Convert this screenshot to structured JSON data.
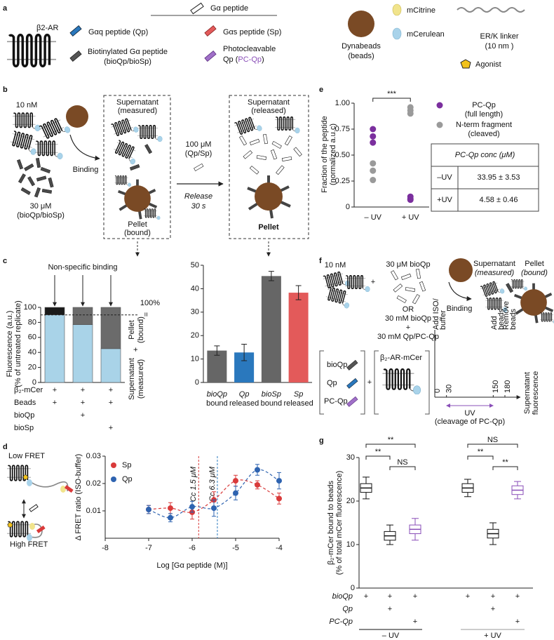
{
  "panel_labels": [
    "a",
    "b",
    "c",
    "d",
    "e",
    "f",
    "g"
  ],
  "legend_a": {
    "receptor": "β2-AR",
    "peptide_header": "Gα peptide",
    "qp": "Gαq peptide (Qp)",
    "sp": "Gαs peptide (Sp)",
    "bio": [
      "Biotinylated Gα peptide",
      "(bioQp/bioSp)"
    ],
    "pc": [
      "Photocleavable",
      "Qp (",
      "PC-Qp",
      ")"
    ],
    "beads": [
      "Dynabeads",
      "(beads)"
    ],
    "citrine": "mCitrine",
    "cerulean": "mCerulean",
    "linker": [
      "ER/K linker",
      "(10 nm )"
    ],
    "agonist": "Agonist"
  },
  "workflow_b": {
    "receptor_conc": "10 nM",
    "peptide_conc": [
      "30 μM",
      "(bioQp/bioSp)"
    ],
    "binding": "Binding",
    "supernatant": [
      "Supernatant",
      "(measured)"
    ],
    "pellet": [
      "Pellet",
      "(bound)"
    ],
    "release_conc": [
      "100 μM",
      "(Qp/Sp)"
    ],
    "release": [
      "Release",
      "30 s"
    ],
    "released": [
      "Supernatant",
      "(released)"
    ],
    "final_pellet": "Pellet"
  },
  "fret_d": {
    "low": "Low FRET",
    "high": "High FRET"
  },
  "table_e": {
    "header": "PC-Qp conc (μM)",
    "rows": [
      [
        "–UV",
        "33.95 ± 3.53"
      ],
      [
        "+UV",
        "4.58 ± 0.46"
      ]
    ]
  },
  "workflow_f": {
    "receptor_conc": "10 nM",
    "plus": "+",
    "peptide_conc": "30 μM bioQp",
    "or": "OR",
    "alt": [
      "30 mM bioQp",
      "+",
      "30 mM Qp/PC-Qp"
    ],
    "binding": "Binding",
    "supernatant": [
      "Supernatant",
      "(measured)"
    ],
    "pellet": [
      "Pellet",
      "(bound)"
    ],
    "mix": [
      "bioQp",
      "Qp",
      "PC-Qp"
    ],
    "mix_plus": "+",
    "receptor": "β₂-AR-mCer",
    "timeline": {
      "ticks": [
        0,
        30,
        150,
        180
      ],
      "events": [
        [
          "Add ISO/",
          "buffer"
        ],
        [
          "Add",
          "beads"
        ],
        [
          "Remove",
          "beads"
        ]
      ],
      "uv": "UV",
      "uv_note": "(cleavage of PC-Qp)",
      "readout": [
        "Supernatant",
        "fluorescence"
      ]
    }
  },
  "chart_data": [
    {
      "type": "stacked_bar",
      "title": "Non-specific binding",
      "ylabel": [
        "Fluorescence (a.u.)",
        "(% of untreated replicate)"
      ],
      "series": [
        {
          "name": [
            "Supernatant",
            "(measured)"
          ],
          "color": "#a9d3e8",
          "values": [
            90,
            77,
            45
          ]
        },
        {
          "name": [
            "Pellet",
            "(bound)"
          ],
          "color": "#6b6b6b",
          "colors": [
            "#1a1a1a",
            "#6b6b6b",
            "#6b6b6b"
          ],
          "values": [
            10,
            23,
            55
          ]
        }
      ],
      "side_labels": {
        "total": "100%",
        "equals": "=",
        "plus": "+"
      },
      "reference_line": 90,
      "ylim": [
        0,
        100
      ],
      "yticks": [
        0,
        20,
        40,
        60,
        80,
        100
      ],
      "conditions": {
        "rows": [
          "β₂-mCer",
          "Beads",
          "bioQp",
          "bioSp"
        ],
        "marks": [
          [
            "+",
            "+",
            "+"
          ],
          [
            "+",
            "+",
            "+"
          ],
          [
            null,
            "+",
            null
          ],
          [
            null,
            null,
            "+"
          ]
        ]
      }
    },
    {
      "type": "bar",
      "categories": [
        [
          "bioQp",
          "bound"
        ],
        [
          "Qp",
          "released"
        ],
        [
          "bioSp",
          "bound"
        ],
        [
          "Sp",
          "released"
        ]
      ],
      "category_colors": [
        "#111111",
        "#2a78bd",
        "#111111",
        "#e35a5a"
      ],
      "colors": [
        "#666666",
        "#2a78bd",
        "#666666",
        "#e35a5a"
      ],
      "values": [
        13.6,
        12.8,
        45.4,
        38.3
      ],
      "errors": [
        2,
        3.5,
        2,
        3
      ],
      "ylim": [
        0,
        50
      ],
      "yticks": [
        0,
        10,
        20,
        30,
        40,
        50
      ]
    },
    {
      "type": "line",
      "ylabel": "Δ FRET ratio (ISO-buffer)",
      "xlabel": "Log [Gα peptide (M)]",
      "x": [
        -7,
        -6.5,
        -6,
        -5.5,
        -5,
        -4.5,
        -4
      ],
      "series": [
        {
          "name": "Sp",
          "color": "#d93a3a",
          "values": [
            0.0105,
            0.011,
            0.0095,
            0.014,
            0.021,
            0.0195,
            0.0145
          ],
          "errors": [
            0.0015,
            0.002,
            0.0025,
            0.003,
            0.002,
            0.0015,
            0.002
          ]
        },
        {
          "name": "Qp",
          "color": "#2e63b0",
          "values": [
            0.0105,
            0.0075,
            0.0115,
            0.011,
            0.0165,
            0.025,
            0.021
          ],
          "errors": [
            0.0015,
            0.0015,
            0.002,
            0.003,
            0.0025,
            0.002,
            0.003
          ]
        }
      ],
      "annotations": [
        {
          "text": "Cc 1.5 μM",
          "x": -5.85,
          "color": "#d93a3a"
        },
        {
          "text": "Cc 6.3 μM",
          "x": -5.42,
          "color": "#2e7bbf"
        }
      ],
      "xlim": [
        -8,
        -4
      ],
      "xticks": [
        -8,
        -7,
        -6,
        -5,
        -4
      ],
      "ylim": [
        0,
        0.03
      ],
      "yticks": [
        0.01,
        0.02,
        0.03
      ]
    },
    {
      "type": "strip",
      "ylabel": [
        "Fraction of the peptide",
        "(normalized a.u.c)"
      ],
      "categories": [
        "– UV",
        "+ UV"
      ],
      "category_colors": [
        "#111111",
        "#999999"
      ],
      "series": [
        {
          "name": [
            "PC-Qp",
            "(full length)"
          ],
          "color": "#7b2f9e",
          "values": [
            [
              0.75,
              0.68,
              0.62
            ],
            [
              0.1,
              0.08,
              0.07
            ]
          ]
        },
        {
          "name": [
            "N-term fragment",
            "(cleaved)"
          ],
          "color": "#9a9a9a",
          "values": [
            [
              0.42,
              0.35,
              0.26
            ],
            [
              0.96,
              0.93,
              0.9
            ]
          ]
        }
      ],
      "significance": "***",
      "ylim": [
        0,
        1
      ],
      "yticks": [
        0,
        0.25,
        {
          "value": 0.5,
          "label": "0.50"
        },
        0.75,
        {
          "value": 1,
          "label": "1.00"
        }
      ]
    },
    {
      "type": "box",
      "ylabel": [
        "β₂-mCer bound to beads",
        "(% of total mCer fluorescence)"
      ],
      "colors": [
        "#111111",
        "#111111",
        "#8a4fb8",
        "#111111",
        "#111111",
        "#8a4fb8"
      ],
      "boxes": [
        {
          "median": 23,
          "q1": 22,
          "q3": 24,
          "whisker_low": 20.5,
          "whisker_high": 25.5
        },
        {
          "median": 12,
          "q1": 11,
          "q3": 13,
          "whisker_low": 10,
          "whisker_high": 14.5
        },
        {
          "median": 13.5,
          "q1": 12.5,
          "q3": 14.5,
          "whisker_low": 11,
          "whisker_high": 16
        },
        {
          "median": 23,
          "q1": 22,
          "q3": 24,
          "whisker_low": 21,
          "whisker_high": 25
        },
        {
          "median": 12.5,
          "q1": 11.5,
          "q3": 13.5,
          "whisker_low": 10,
          "whisker_high": 15
        },
        {
          "median": 22.5,
          "q1": 21.5,
          "q3": 23.5,
          "whisker_low": 20.5,
          "whisker_high": 24.5
        }
      ],
      "significance": [
        [
          "**",
          "**",
          "NS"
        ],
        [
          "NS",
          "**",
          "**"
        ]
      ],
      "ylim": [
        0,
        30
      ],
      "yticks": [
        0,
        10,
        20,
        30
      ],
      "conditions": {
        "rows": [
          "bioQp",
          "Qp",
          "PC-Qp"
        ],
        "row_colors": [
          "#111111",
          "#111111",
          "#8a4fb8"
        ],
        "marks": [
          [
            "+",
            "+",
            "+",
            "+",
            "+",
            "+"
          ],
          [
            null,
            "+",
            null,
            null,
            "+",
            null
          ],
          [
            null,
            null,
            "+",
            null,
            null,
            "+"
          ]
        ]
      },
      "groups": [
        "– UV",
        "+ UV"
      ],
      "group_colors": [
        "#111111",
        "#999999"
      ]
    }
  ]
}
